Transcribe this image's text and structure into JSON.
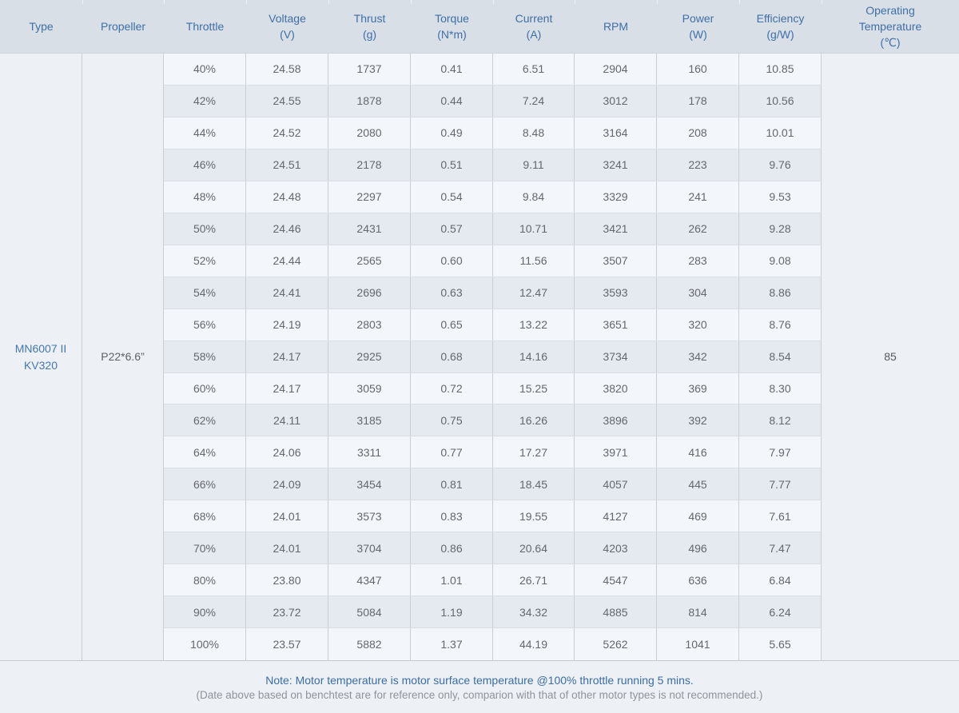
{
  "palette": {
    "header_bg": "#d8dfe7",
    "header_text": "#3f6fa6",
    "row_light": "#f3f6fa",
    "row_dark": "#e5eaf0",
    "side_bg": "#edf1f6",
    "cell_text": "#64686c",
    "type_text": "#4578ad",
    "note_primary": "#3b6ca4",
    "note_secondary": "#8e949b"
  },
  "header": {
    "cols": [
      {
        "lines": [
          "Type"
        ]
      },
      {
        "lines": [
          "Propeller"
        ]
      },
      {
        "lines": [
          "Throttle"
        ]
      },
      {
        "lines": [
          "Voltage",
          "(V)"
        ]
      },
      {
        "lines": [
          "Thrust",
          "(g)"
        ]
      },
      {
        "lines": [
          "Torque",
          "(N*m)"
        ]
      },
      {
        "lines": [
          "Current",
          "(A)"
        ]
      },
      {
        "lines": [
          "RPM"
        ]
      },
      {
        "lines": [
          "Power",
          "(W)"
        ]
      },
      {
        "lines": [
          "Efficiency",
          "(g/W)"
        ]
      },
      {
        "lines": [
          "Operating",
          "Temperature",
          "(℃)"
        ]
      }
    ]
  },
  "chart_data": {
    "type": "table",
    "title": "MN6007 II KV320 motor bench test data",
    "columns": [
      "Type",
      "Propeller",
      "Throttle",
      "Voltage (V)",
      "Thrust (g)",
      "Torque (N*m)",
      "Current (A)",
      "RPM",
      "Power (W)",
      "Efficiency (g/W)",
      "Operating Temperature (℃)"
    ],
    "shared": {
      "type_line1": "MN6007 II",
      "type_line2": "KV320",
      "propeller": "P22*6.6”",
      "operating_temperature": "85"
    },
    "rows": [
      {
        "throttle": "40%",
        "voltage": "24.58",
        "thrust": "1737",
        "torque": "0.41",
        "current": "6.51",
        "rpm": "2904",
        "power": "160",
        "efficiency": "10.85"
      },
      {
        "throttle": "42%",
        "voltage": "24.55",
        "thrust": "1878",
        "torque": "0.44",
        "current": "7.24",
        "rpm": "3012",
        "power": "178",
        "efficiency": "10.56"
      },
      {
        "throttle": "44%",
        "voltage": "24.52",
        "thrust": "2080",
        "torque": "0.49",
        "current": "8.48",
        "rpm": "3164",
        "power": "208",
        "efficiency": "10.01"
      },
      {
        "throttle": "46%",
        "voltage": "24.51",
        "thrust": "2178",
        "torque": "0.51",
        "current": "9.11",
        "rpm": "3241",
        "power": "223",
        "efficiency": "9.76"
      },
      {
        "throttle": "48%",
        "voltage": "24.48",
        "thrust": "2297",
        "torque": "0.54",
        "current": "9.84",
        "rpm": "3329",
        "power": "241",
        "efficiency": "9.53"
      },
      {
        "throttle": "50%",
        "voltage": "24.46",
        "thrust": "2431",
        "torque": "0.57",
        "current": "10.71",
        "rpm": "3421",
        "power": "262",
        "efficiency": "9.28"
      },
      {
        "throttle": "52%",
        "voltage": "24.44",
        "thrust": "2565",
        "torque": "0.60",
        "current": "11.56",
        "rpm": "3507",
        "power": "283",
        "efficiency": "9.08"
      },
      {
        "throttle": "54%",
        "voltage": "24.41",
        "thrust": "2696",
        "torque": "0.63",
        "current": "12.47",
        "rpm": "3593",
        "power": "304",
        "efficiency": "8.86"
      },
      {
        "throttle": "56%",
        "voltage": "24.19",
        "thrust": "2803",
        "torque": "0.65",
        "current": "13.22",
        "rpm": "3651",
        "power": "320",
        "efficiency": "8.76"
      },
      {
        "throttle": "58%",
        "voltage": "24.17",
        "thrust": "2925",
        "torque": "0.68",
        "current": "14.16",
        "rpm": "3734",
        "power": "342",
        "efficiency": "8.54"
      },
      {
        "throttle": "60%",
        "voltage": "24.17",
        "thrust": "3059",
        "torque": "0.72",
        "current": "15.25",
        "rpm": "3820",
        "power": "369",
        "efficiency": "8.30"
      },
      {
        "throttle": "62%",
        "voltage": "24.11",
        "thrust": "3185",
        "torque": "0.75",
        "current": "16.26",
        "rpm": "3896",
        "power": "392",
        "efficiency": "8.12"
      },
      {
        "throttle": "64%",
        "voltage": "24.06",
        "thrust": "3311",
        "torque": "0.77",
        "current": "17.27",
        "rpm": "3971",
        "power": "416",
        "efficiency": "7.97"
      },
      {
        "throttle": "66%",
        "voltage": "24.09",
        "thrust": "3454",
        "torque": "0.81",
        "current": "18.45",
        "rpm": "4057",
        "power": "445",
        "efficiency": "7.77"
      },
      {
        "throttle": "68%",
        "voltage": "24.01",
        "thrust": "3573",
        "torque": "0.83",
        "current": "19.55",
        "rpm": "4127",
        "power": "469",
        "efficiency": "7.61"
      },
      {
        "throttle": "70%",
        "voltage": "24.01",
        "thrust": "3704",
        "torque": "0.86",
        "current": "20.64",
        "rpm": "4203",
        "power": "496",
        "efficiency": "7.47"
      },
      {
        "throttle": "80%",
        "voltage": "23.80",
        "thrust": "4347",
        "torque": "1.01",
        "current": "26.71",
        "rpm": "4547",
        "power": "636",
        "efficiency": "6.84"
      },
      {
        "throttle": "90%",
        "voltage": "23.72",
        "thrust": "5084",
        "torque": "1.19",
        "current": "34.32",
        "rpm": "4885",
        "power": "814",
        "efficiency": "6.24"
      },
      {
        "throttle": "100%",
        "voltage": "23.57",
        "thrust": "5882",
        "torque": "1.37",
        "current": "44.19",
        "rpm": "5262",
        "power": "1041",
        "efficiency": "5.65"
      }
    ]
  },
  "notes": {
    "line1": "Note: Motor temperature is motor surface temperature @100% throttle running 5 mins.",
    "line2": "(Date above based on benchtest are for reference only, comparion with that of other motor types is not recommended.)"
  }
}
